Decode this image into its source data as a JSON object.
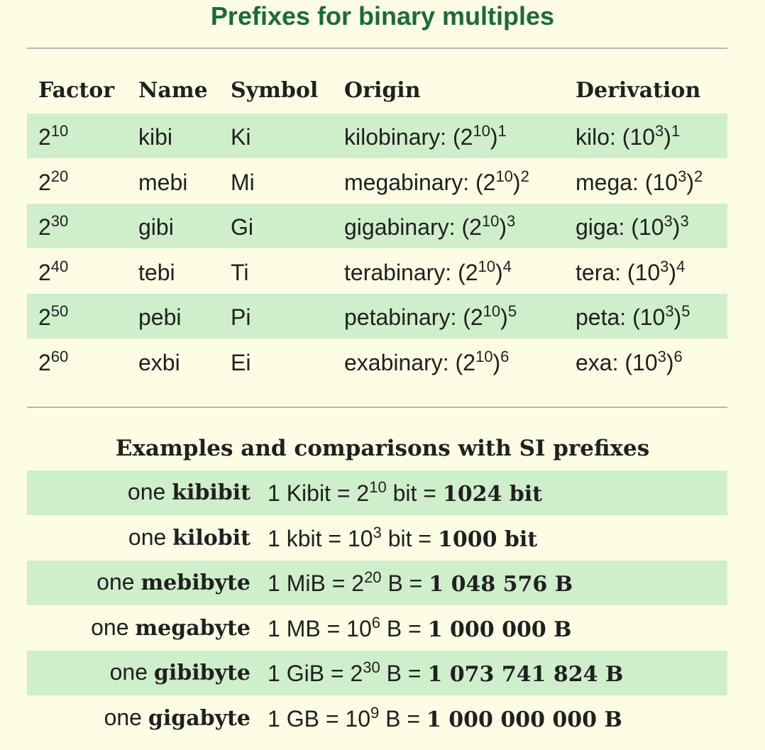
{
  "title": "Prefixes for binary multiples",
  "table": {
    "headers": [
      "Factor",
      "Name",
      "Symbol",
      "Origin",
      "Derivation"
    ],
    "rows": [
      [
        [
          {
            "t": "2",
            "sup": "10"
          }
        ],
        [
          {
            "t": "kibi"
          }
        ],
        [
          {
            "t": "Ki"
          }
        ],
        [
          {
            "t": "kilobinary: (2",
            "sup": "10"
          },
          {
            "t": ")",
            "sup": "1"
          }
        ],
        [
          {
            "t": "kilo: (10",
            "sup": "3"
          },
          {
            "t": ")",
            "sup": "1"
          }
        ]
      ],
      [
        [
          {
            "t": "2",
            "sup": "20"
          }
        ],
        [
          {
            "t": "mebi"
          }
        ],
        [
          {
            "t": "Mi"
          }
        ],
        [
          {
            "t": "megabinary: (2",
            "sup": "10"
          },
          {
            "t": ")",
            "sup": "2"
          }
        ],
        [
          {
            "t": "mega: (10",
            "sup": "3"
          },
          {
            "t": ")",
            "sup": "2"
          }
        ]
      ],
      [
        [
          {
            "t": "2",
            "sup": "30"
          }
        ],
        [
          {
            "t": "gibi"
          }
        ],
        [
          {
            "t": "Gi"
          }
        ],
        [
          {
            "t": "gigabinary: (2",
            "sup": "10"
          },
          {
            "t": ")",
            "sup": "3"
          }
        ],
        [
          {
            "t": "giga: (10",
            "sup": "3"
          },
          {
            "t": ")",
            "sup": "3"
          }
        ]
      ],
      [
        [
          {
            "t": "2",
            "sup": "40"
          }
        ],
        [
          {
            "t": "tebi"
          }
        ],
        [
          {
            "t": "Ti"
          }
        ],
        [
          {
            "t": "terabinary: (2",
            "sup": "10"
          },
          {
            "t": ")",
            "sup": "4"
          }
        ],
        [
          {
            "t": "tera: (10",
            "sup": "3"
          },
          {
            "t": ")",
            "sup": "4"
          }
        ]
      ],
      [
        [
          {
            "t": "2",
            "sup": "50"
          }
        ],
        [
          {
            "t": "pebi"
          }
        ],
        [
          {
            "t": "Pi"
          }
        ],
        [
          {
            "t": "petabinary: (2",
            "sup": "10"
          },
          {
            "t": ")",
            "sup": "5"
          }
        ],
        [
          {
            "t": "peta: (10",
            "sup": "3"
          },
          {
            "t": ")",
            "sup": "5"
          }
        ]
      ],
      [
        [
          {
            "t": "2",
            "sup": "60"
          }
        ],
        [
          {
            "t": "exbi"
          }
        ],
        [
          {
            "t": "Ei"
          }
        ],
        [
          {
            "t": "exabinary: (2",
            "sup": "10"
          },
          {
            "t": ")",
            "sup": "6"
          }
        ],
        [
          {
            "t": "exa: (10",
            "sup": "3"
          },
          {
            "t": ")",
            "sup": "6"
          }
        ]
      ]
    ]
  },
  "examples": {
    "title": "Examples and comparisons with SI prefixes",
    "rows": [
      [
        [
          {
            "t": "one "
          },
          {
            "b": "kibibit"
          }
        ],
        [
          {
            "t": "1 Kibit = 2",
            "sup": "10"
          },
          {
            "t": " bit = "
          },
          {
            "b": "1024 bit"
          }
        ]
      ],
      [
        [
          {
            "t": "one "
          },
          {
            "b": "kilobit"
          }
        ],
        [
          {
            "t": "1 kbit = 10",
            "sup": "3"
          },
          {
            "t": " bit = "
          },
          {
            "b": "1000 bit"
          }
        ]
      ],
      [
        [
          {
            "t": "one "
          },
          {
            "b": "mebibyte"
          }
        ],
        [
          {
            "t": "1 MiB = 2",
            "sup": "20"
          },
          {
            "t": " B = "
          },
          {
            "b": "1 048 576 B"
          }
        ]
      ],
      [
        [
          {
            "t": "one "
          },
          {
            "b": "megabyte"
          }
        ],
        [
          {
            "t": "1 MB = 10",
            "sup": "6"
          },
          {
            "t": " B = "
          },
          {
            "b": "1 000 000 B"
          }
        ]
      ],
      [
        [
          {
            "t": "one "
          },
          {
            "b": "gibibyte"
          }
        ],
        [
          {
            "t": "1 GiB = 2",
            "sup": "30"
          },
          {
            "t": " B = "
          },
          {
            "b": "1 073 741 824 B"
          }
        ]
      ],
      [
        [
          {
            "t": "one "
          },
          {
            "b": "gigabyte"
          }
        ],
        [
          {
            "t": "1 GB = 10",
            "sup": "9"
          },
          {
            "t": " B = "
          },
          {
            "b": "1 000 000 000 B"
          }
        ]
      ]
    ]
  }
}
